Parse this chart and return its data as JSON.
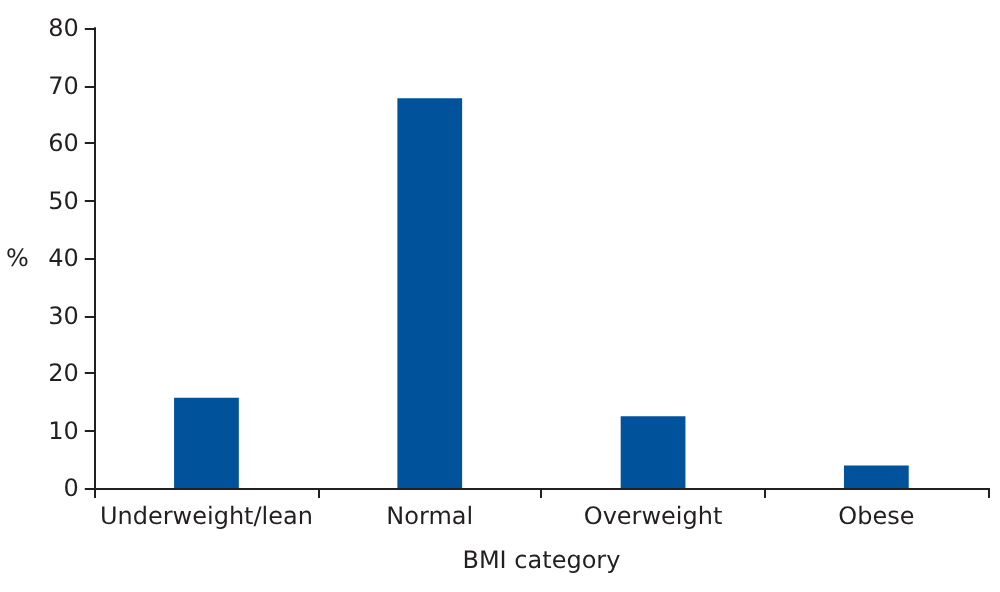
{
  "chart_data": {
    "type": "bar",
    "xlabel": "BMI category",
    "ylabel": "%",
    "categories": [
      "Underweight/lean",
      "Normal",
      "Overweight",
      "Obese"
    ],
    "values": [
      15.7,
      67.8,
      12.5,
      3.9
    ],
    "color": "#00529b",
    "ylim": [
      0,
      80
    ],
    "yticks": [
      0,
      10,
      20,
      30,
      40,
      50,
      60,
      70,
      80
    ],
    "grid": false
  }
}
